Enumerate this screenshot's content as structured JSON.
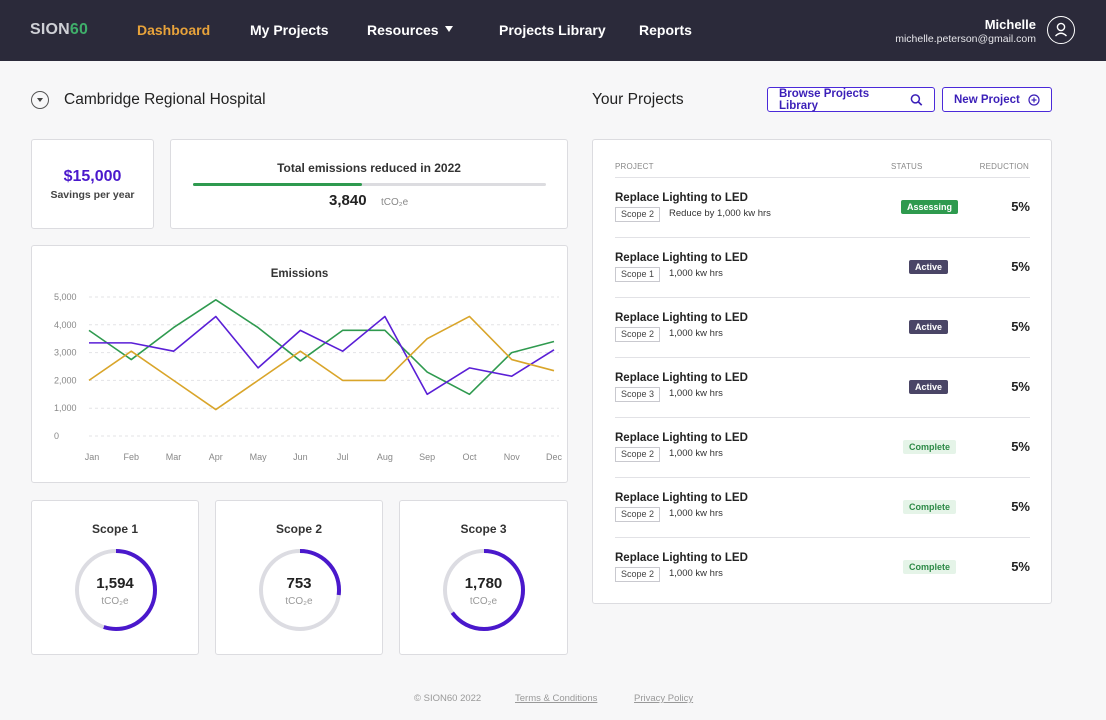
{
  "brand": {
    "logo_prefix": "SION",
    "logo_suffix": "60",
    "accent_color": "#e8a33a",
    "logo_accent_color": "#3fae6a"
  },
  "nav": {
    "items": [
      "Dashboard",
      "My Projects",
      "Resources",
      "Projects Library",
      "Reports"
    ],
    "active": "Dashboard"
  },
  "user": {
    "name": "Michelle",
    "email": "michelle.peterson@gmail.com",
    "icon": "user-icon"
  },
  "site": {
    "title": "Cambridge Regional Hospital"
  },
  "projects_header": {
    "title": "Your Projects",
    "browse_label": "Browse Projects Library",
    "new_label": "New Project"
  },
  "savings": {
    "value": "$15,000",
    "label": "Savings per year"
  },
  "emissions_total": {
    "title": "Total emissions reduced in 2022",
    "value": "3,840",
    "unit": "tCO₂e",
    "progress": 0.48
  },
  "chart_data": {
    "type": "line",
    "title": "Emissions",
    "categories": [
      "Jan",
      "Feb",
      "Mar",
      "Apr",
      "May",
      "Jun",
      "Jul",
      "Aug",
      "Sep",
      "Oct",
      "Nov",
      "Dec"
    ],
    "ylim": [
      0,
      5000
    ],
    "yticks": [
      "5,000",
      "4,000",
      "3,000",
      "2,000",
      "1,000",
      "0"
    ],
    "grid": true,
    "series": [
      {
        "color": "#2f9a4f",
        "values": [
          3800,
          2750,
          3900,
          4900,
          3900,
          2700,
          3800,
          3800,
          2300,
          1500,
          3000,
          3400
        ]
      },
      {
        "color": "#5a1fd6",
        "values": [
          3350,
          3350,
          3050,
          4300,
          2450,
          3800,
          3050,
          4300,
          1500,
          2450,
          2150,
          3100
        ]
      },
      {
        "color": "#d9a52a",
        "values": [
          2000,
          3050,
          2000,
          950,
          2000,
          3050,
          2000,
          2000,
          3500,
          4300,
          2750,
          2350
        ]
      }
    ]
  },
  "scopes": [
    {
      "title": "Scope 1",
      "value": "1,594",
      "unit": "tCO₂e",
      "fraction": 0.55
    },
    {
      "title": "Scope 2",
      "value": "753",
      "unit": "tCO₂e",
      "fraction": 0.27
    },
    {
      "title": "Scope 3",
      "value": "1,780",
      "unit": "tCO₂e",
      "fraction": 0.65
    }
  ],
  "table": {
    "headers": {
      "project": "PROJECT",
      "status": "STATUS",
      "reduction": "REDUCTION"
    },
    "rows": [
      {
        "title": "Replace Lighting to LED",
        "scope": "Scope 2",
        "desc": "Reduce by 1,000 kw hrs",
        "status": "Assessing",
        "status_type": "assessing",
        "reduction": "5%"
      },
      {
        "title": "Replace Lighting to LED",
        "scope": "Scope 1",
        "desc": "1,000 kw hrs",
        "status": "Active",
        "status_type": "active",
        "reduction": "5%"
      },
      {
        "title": "Replace Lighting to LED",
        "scope": "Scope 2",
        "desc": "1,000 kw hrs",
        "status": "Active",
        "status_type": "active",
        "reduction": "5%"
      },
      {
        "title": "Replace Lighting to LED",
        "scope": "Scope 3",
        "desc": "1,000 kw hrs",
        "status": "Active",
        "status_type": "active",
        "reduction": "5%"
      },
      {
        "title": "Replace Lighting to LED",
        "scope": "Scope 2",
        "desc": "1,000 kw hrs",
        "status": "Complete",
        "status_type": "complete",
        "reduction": "5%"
      },
      {
        "title": "Replace Lighting to LED",
        "scope": "Scope 2",
        "desc": "1,000 kw hrs",
        "status": "Complete",
        "status_type": "complete",
        "reduction": "5%"
      },
      {
        "title": "Replace Lighting to LED",
        "scope": "Scope 2",
        "desc": "1,000 kw hrs",
        "status": "Complete",
        "status_type": "complete",
        "reduction": "5%"
      }
    ]
  },
  "footer": {
    "copyright": "© SION60 2022",
    "terms": "Terms & Conditions",
    "privacy": "Privacy Policy"
  }
}
